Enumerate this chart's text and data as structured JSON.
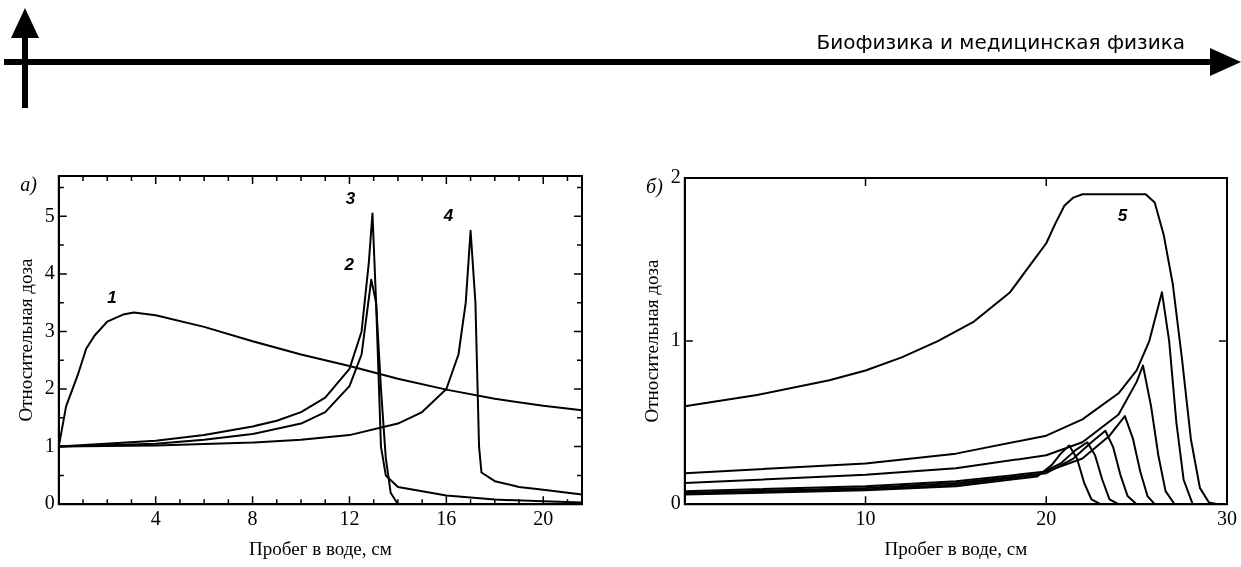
{
  "chart_data": [
    {
      "type": "line",
      "title": "а)",
      "xlabel": "Пробег в воде, см",
      "ylabel": "Относительная доза",
      "xlim": [
        0,
        21.6
      ],
      "ylim": [
        0,
        5.7
      ],
      "xticks": [
        {
          "value": 1,
          "label": null
        },
        {
          "value": 2,
          "label": null
        },
        {
          "value": 3,
          "label": null
        },
        4,
        {
          "value": 5,
          "label": null
        },
        {
          "value": 6,
          "label": null
        },
        {
          "value": 7,
          "label": null
        },
        8,
        {
          "value": 9,
          "label": null
        },
        {
          "value": 10,
          "label": null
        },
        {
          "value": 11,
          "label": null
        },
        12,
        {
          "value": 13,
          "label": null
        },
        {
          "value": 14,
          "label": null
        },
        {
          "value": 15,
          "label": null
        },
        16,
        {
          "value": 17,
          "label": null
        },
        {
          "value": 18,
          "label": null
        },
        {
          "value": 19,
          "label": null
        },
        20,
        {
          "value": 21,
          "label": null
        }
      ],
      "yticks": [
        0,
        {
          "value": 0.5,
          "label": null
        },
        1,
        {
          "value": 1.5,
          "label": null
        },
        2,
        {
          "value": 2.5,
          "label": null
        },
        3,
        {
          "value": 3.5,
          "label": null
        },
        4,
        {
          "value": 4.5,
          "label": null
        },
        5,
        {
          "value": 5.5,
          "label": null
        }
      ],
      "series": [
        {
          "name": "1",
          "color": "#000000",
          "x": [
            0,
            0.3,
            0.78,
            1.13,
            1.48,
            2.0,
            2.7,
            3.1,
            4,
            6,
            8,
            10,
            12,
            14,
            16,
            18,
            20,
            21.6
          ],
          "values": [
            1,
            1.7,
            2.24,
            2.7,
            2.93,
            3.17,
            3.3,
            3.33,
            3.28,
            3.08,
            2.83,
            2.6,
            2.4,
            2.18,
            1.99,
            1.83,
            1.71,
            1.63
          ]
        },
        {
          "name": "2",
          "color": "#000000",
          "x": [
            0,
            4,
            6,
            8,
            10,
            11,
            12,
            12.5,
            12.9,
            13.1,
            13.3,
            13.5,
            13.7,
            14
          ],
          "values": [
            1,
            1.05,
            1.12,
            1.22,
            1.4,
            1.6,
            2.05,
            2.6,
            3.9,
            3.5,
            2.0,
            0.8,
            0.2,
            0
          ]
        },
        {
          "name": "3",
          "color": "#000000",
          "x": [
            0,
            4,
            6,
            8,
            9,
            10,
            11,
            12,
            12.5,
            12.8,
            12.95,
            13.1,
            13.3,
            13.5,
            14,
            16,
            18,
            20,
            21.6
          ],
          "values": [
            1,
            1.1,
            1.2,
            1.35,
            1.45,
            1.6,
            1.85,
            2.35,
            3.0,
            4.2,
            5.05,
            3.5,
            1.0,
            0.5,
            0.3,
            0.15,
            0.08,
            0.05,
            0.03
          ]
        },
        {
          "name": "4",
          "color": "#000000",
          "x": [
            0,
            4,
            8,
            10,
            12,
            14,
            15,
            16,
            16.5,
            16.8,
            17,
            17.2,
            17.35,
            17.45,
            18,
            19,
            20,
            21.6
          ],
          "values": [
            1,
            1.02,
            1.07,
            1.12,
            1.2,
            1.4,
            1.6,
            2.0,
            2.6,
            3.5,
            4.75,
            3.5,
            1.0,
            0.55,
            0.4,
            0.3,
            0.25,
            0.17
          ]
        }
      ],
      "annotations": [
        "Биофизика и медицинская физика"
      ]
    },
    {
      "type": "line",
      "title": "б)",
      "xlabel": "Пробег в воде, см",
      "ylabel": "Относительная доза",
      "xlim": [
        0,
        30
      ],
      "ylim": [
        0,
        2
      ],
      "xticks": [
        10,
        20,
        30
      ],
      "yticks": [
        0,
        1,
        2
      ],
      "series": [
        {
          "name": "5",
          "color": "#000000",
          "x": [
            0,
            4,
            8,
            10,
            12,
            14,
            16,
            18,
            19,
            20,
            20.5,
            21,
            21.5,
            22,
            24,
            25.5,
            26,
            26.5,
            27,
            27.5,
            28,
            28.5,
            29,
            29.5
          ],
          "values": [
            0.6,
            0.67,
            0.76,
            0.82,
            0.9,
            1.0,
            1.12,
            1.3,
            1.45,
            1.6,
            1.72,
            1.83,
            1.88,
            1.9,
            1.9,
            1.9,
            1.85,
            1.65,
            1.35,
            0.9,
            0.4,
            0.1,
            0.01,
            0
          ]
        },
        {
          "color": "#000000",
          "x": [
            0,
            10,
            15,
            20,
            22,
            24,
            25,
            25.7,
            26.4,
            26.8,
            27.2,
            27.6,
            28.1
          ],
          "values": [
            0.19,
            0.25,
            0.31,
            0.42,
            0.52,
            0.68,
            0.82,
            1.0,
            1.3,
            1.0,
            0.5,
            0.15,
            0
          ]
        },
        {
          "color": "#000000",
          "x": [
            0,
            10,
            15,
            20,
            22,
            24,
            25,
            25.35,
            25.8,
            26.2,
            26.6,
            27.1
          ],
          "values": [
            0.13,
            0.18,
            0.22,
            0.3,
            0.38,
            0.55,
            0.75,
            0.85,
            0.6,
            0.3,
            0.08,
            0
          ]
        },
        {
          "color": "#000000",
          "x": [
            0,
            10,
            15,
            20,
            22,
            23.5,
            24.35,
            24.8,
            25.2,
            25.6,
            26
          ],
          "values": [
            0.08,
            0.11,
            0.14,
            0.2,
            0.28,
            0.42,
            0.54,
            0.4,
            0.2,
            0.05,
            0
          ]
        },
        {
          "color": "#000000",
          "x": [
            0,
            10,
            15,
            20,
            21.5,
            22.5,
            23.27,
            23.7,
            24.1,
            24.5,
            25
          ],
          "values": [
            0.07,
            0.1,
            0.13,
            0.19,
            0.28,
            0.38,
            0.45,
            0.35,
            0.18,
            0.05,
            0
          ]
        },
        {
          "color": "#000000",
          "x": [
            0,
            10,
            15,
            19.5,
            20.8,
            21.6,
            22.27,
            22.7,
            23.1,
            23.5,
            24
          ],
          "values": [
            0.065,
            0.09,
            0.12,
            0.18,
            0.25,
            0.33,
            0.38,
            0.3,
            0.15,
            0.03,
            0
          ]
        },
        {
          "color": "#000000",
          "x": [
            0,
            10,
            15,
            19.5,
            20.3,
            20.8,
            21.27,
            21.7,
            22.1,
            22.5,
            23
          ],
          "values": [
            0.06,
            0.085,
            0.11,
            0.17,
            0.24,
            0.31,
            0.36,
            0.28,
            0.13,
            0.03,
            0
          ]
        }
      ]
    }
  ]
}
